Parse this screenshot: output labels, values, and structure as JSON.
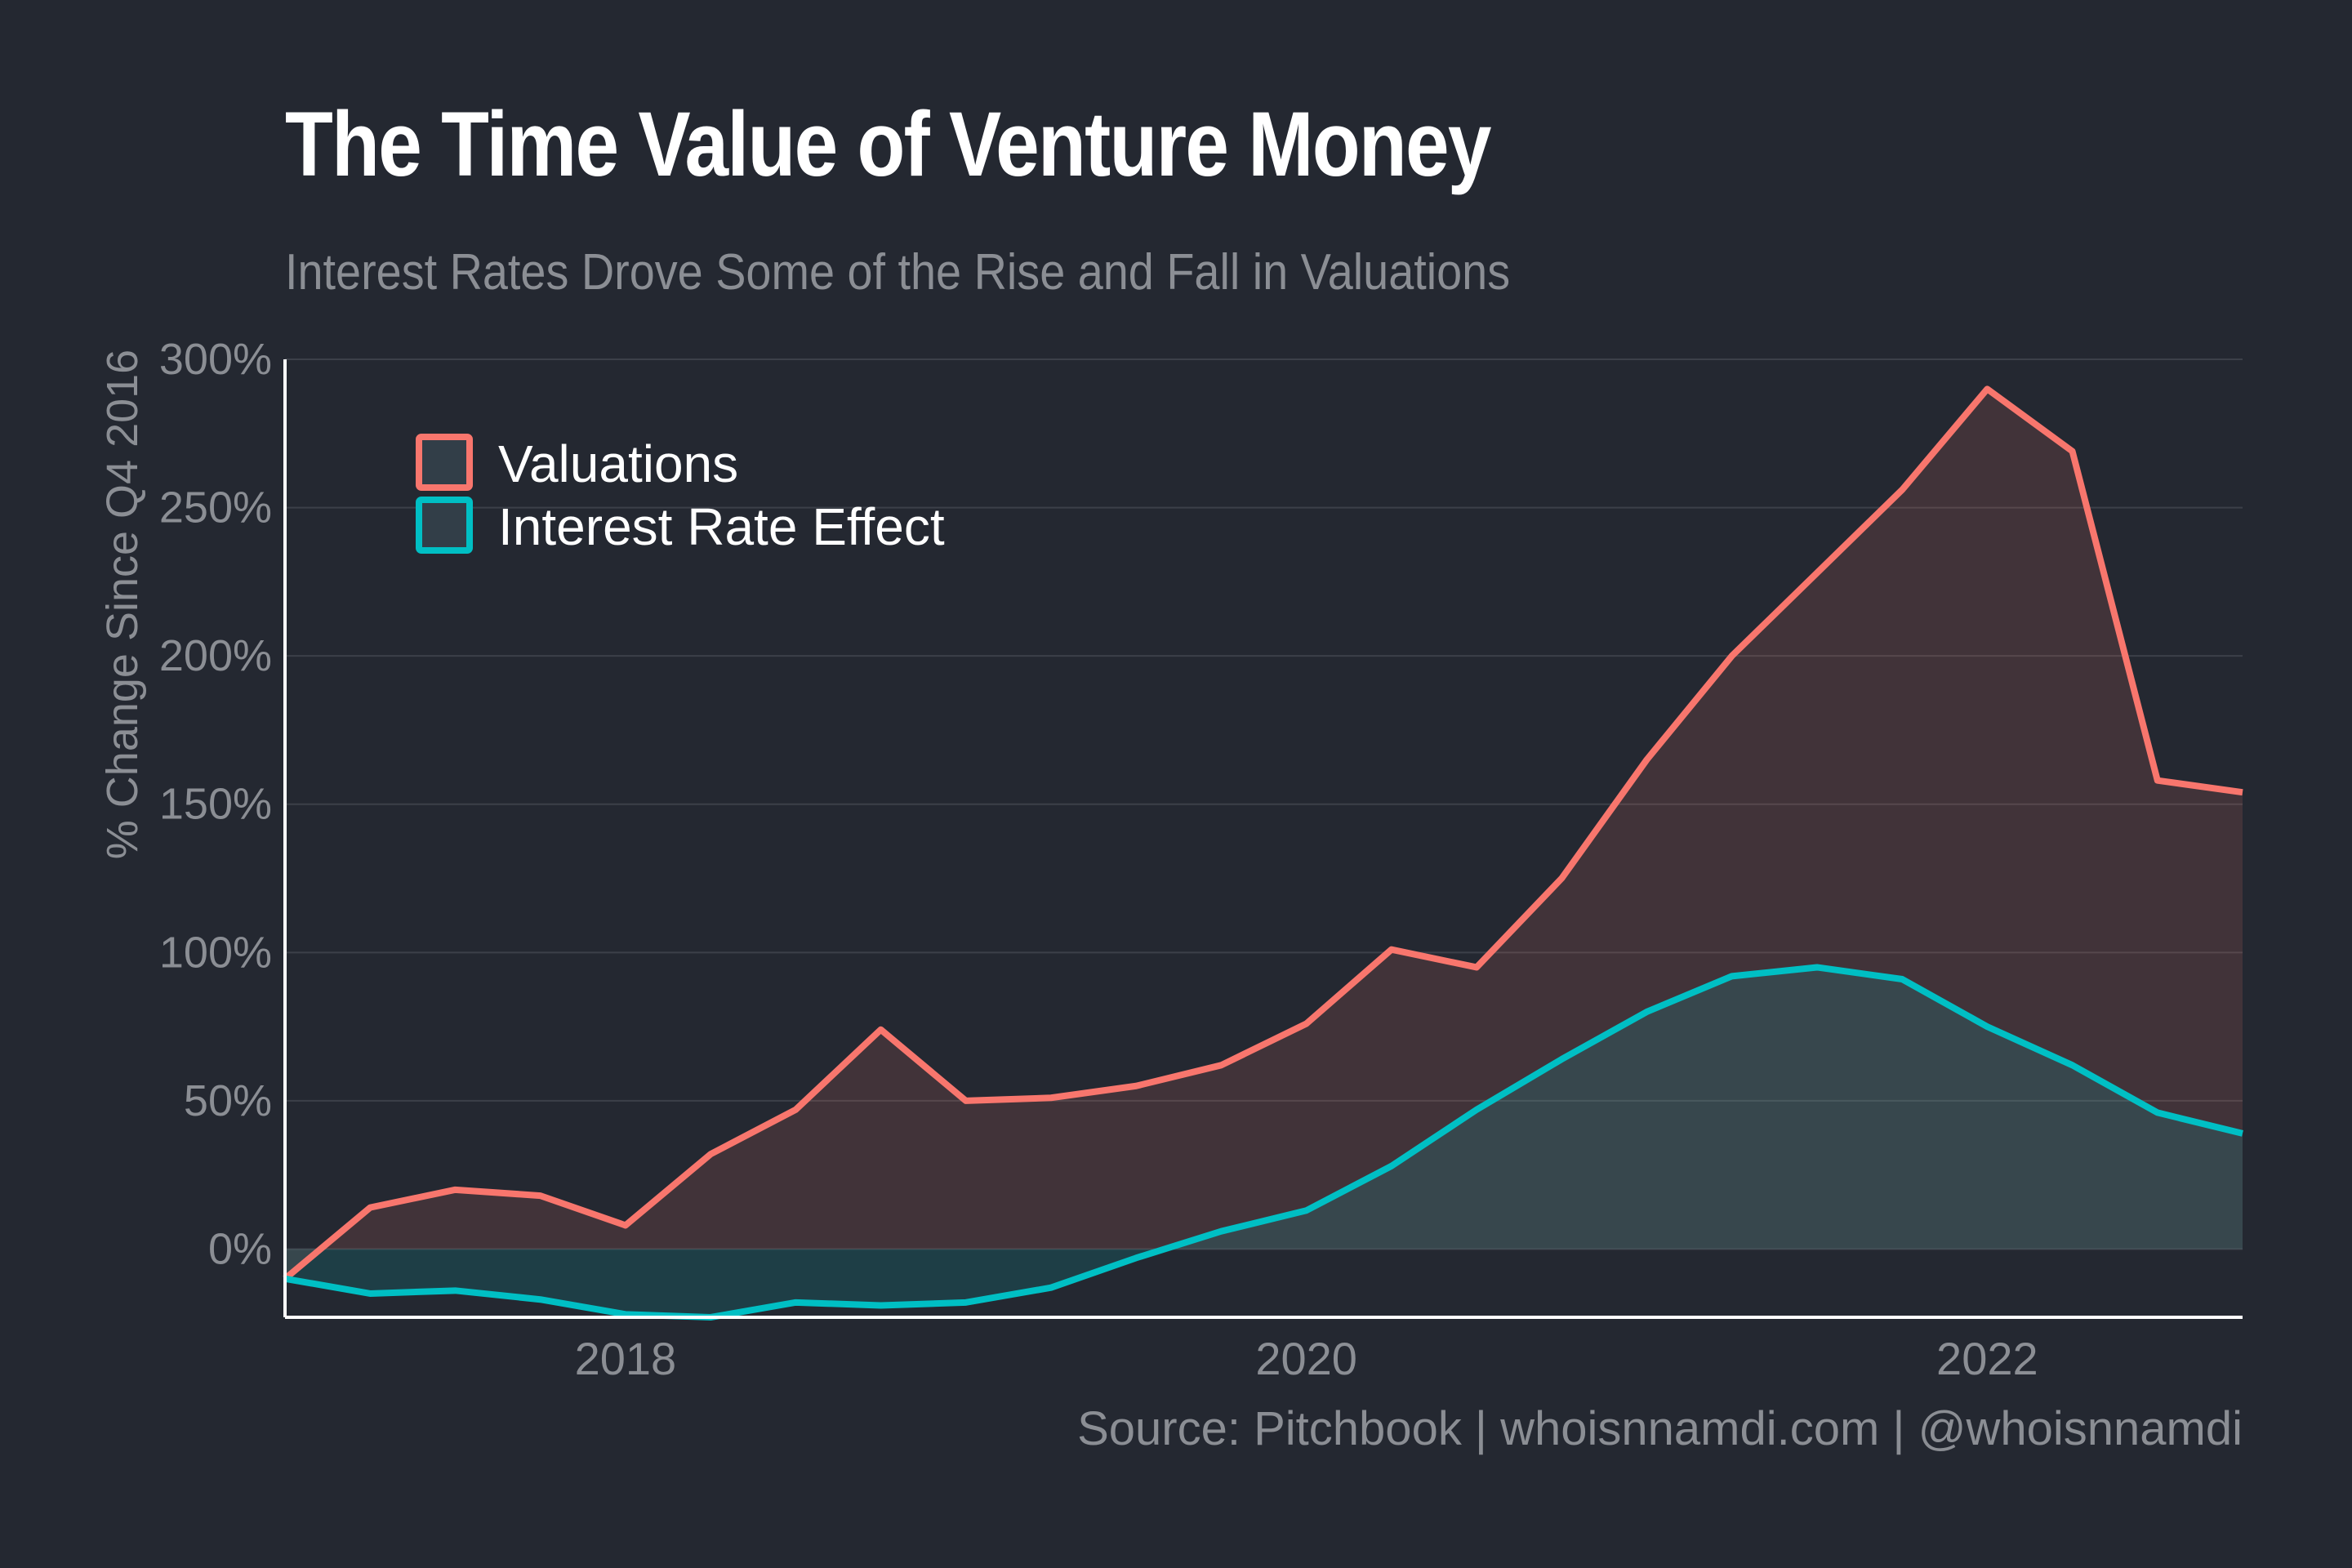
{
  "title": "The Time Value of Venture Money",
  "subtitle": "Interest Rates Drove Some of the Rise and Fall in Valuations",
  "source": "Source: Pitchbook | whoisnnamdi.com | @whoisnnamdi",
  "chart_data": {
    "type": "area",
    "title": "The Time Value of Venture Money",
    "subtitle": "Interest Rates Drove Some of the Rise and Fall in Valuations",
    "xlabel": "",
    "ylabel": "% Change Since Q4 2016",
    "x": [
      2017.0,
      2017.25,
      2017.5,
      2017.75,
      2018.0,
      2018.25,
      2018.5,
      2018.75,
      2019.0,
      2019.25,
      2019.5,
      2019.75,
      2020.0,
      2020.25,
      2020.5,
      2020.75,
      2021.0,
      2021.25,
      2021.5,
      2021.75,
      2022.0,
      2022.25,
      2022.5,
      2022.75
    ],
    "xlim": [
      2017.0,
      2022.75
    ],
    "xticks": [
      2018,
      2020,
      2022
    ],
    "xtick_labels": [
      "2018",
      "2020",
      "2022"
    ],
    "ylim": [
      -23,
      300
    ],
    "yticks": [
      0,
      50,
      100,
      150,
      200,
      250,
      300
    ],
    "ytick_labels": [
      "0%",
      "50%",
      "100%",
      "150%",
      "200%",
      "250%",
      "300%"
    ],
    "grid": "horizontal",
    "legend_position": "top-left",
    "series": [
      {
        "name": "Valuations",
        "color": "#f8766d",
        "values": [
          -10,
          14,
          20,
          18,
          8,
          32,
          47,
          74,
          50,
          51,
          55,
          62,
          76,
          101,
          95,
          125,
          165,
          200,
          228,
          256,
          290,
          269,
          158,
          154
        ]
      },
      {
        "name": "Interest Rate Effect",
        "color": "#00bfc4",
        "values": [
          -10,
          -15,
          -14,
          -17,
          -22,
          -23,
          -18,
          -19,
          -18,
          -13,
          -3,
          6,
          13,
          28,
          47,
          64,
          80,
          92,
          95,
          91,
          75,
          62,
          46,
          39
        ]
      }
    ]
  }
}
